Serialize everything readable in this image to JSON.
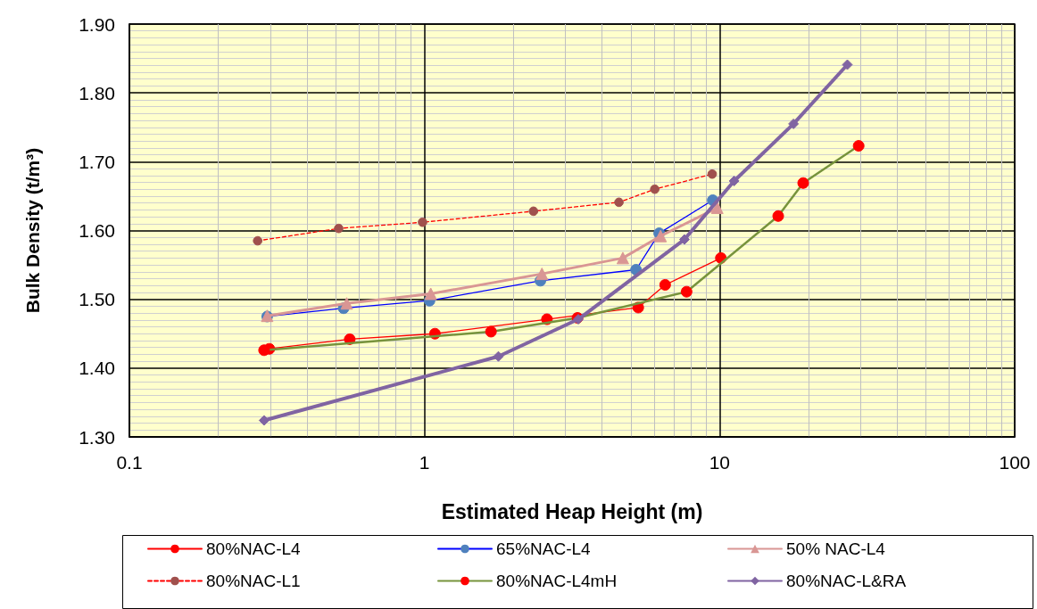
{
  "chart_data": {
    "type": "line",
    "xlabel": "Estimated Heap Height (m)",
    "ylabel": "Bulk Density (t/m³)",
    "log": "x",
    "grid": true,
    "legend": "bottom",
    "xlim": [
      0.1,
      100
    ],
    "xticks": [
      0.1,
      1,
      10,
      100
    ],
    "ylim": [
      1.3,
      1.9
    ],
    "yticks": [
      {
        "value": 1.3,
        "label": "1.30"
      },
      {
        "value": 1.4,
        "label": "1.40"
      },
      {
        "value": 1.5,
        "label": "1.50"
      },
      {
        "value": 1.6,
        "label": "1.60"
      },
      {
        "value": 1.7,
        "label": "1.70"
      },
      {
        "value": 1.8,
        "label": "1.80"
      },
      {
        "value": 1.9,
        "label": "1.90"
      }
    ],
    "series": [
      {
        "name": "80%NAC-L4",
        "color": "#ff0000",
        "marker": "circle",
        "line_style": "solid",
        "x": [
          0.298,
          0.558,
          1.085,
          2.6,
          5.3,
          6.54,
          10.1
        ],
        "values": [
          1.428,
          1.442,
          1.45,
          1.471,
          1.488,
          1.521,
          1.56
        ]
      },
      {
        "name": "65%NAC-L4",
        "color": "#0000ff",
        "colors": [
          "#4f81bd",
          "#4f81bd",
          "#4f81bd",
          "#4f81bd",
          "#4f81bd",
          "#4f81bd",
          "#4f81bd"
        ],
        "marker": "circle",
        "line_style": "solid",
        "x": [
          0.293,
          0.532,
          1.04,
          2.47,
          5.21,
          6.24,
          9.48
        ],
        "values": [
          1.475,
          1.487,
          1.498,
          1.527,
          1.543,
          1.596,
          1.644
        ]
      },
      {
        "name": "50% NAC-L4",
        "color": "#d99694",
        "marker": "triangle",
        "line_style": "solid",
        "x": [
          0.293,
          0.545,
          1.05,
          2.5,
          4.7,
          6.31,
          9.82
        ],
        "values": [
          1.476,
          1.494,
          1.508,
          1.537,
          1.56,
          1.592,
          1.633
        ]
      },
      {
        "name": "80%NAC-L1",
        "color": "#ff0000",
        "colors": [
          "#a0504d",
          "#a0504d",
          "#a0504d",
          "#a0504d",
          "#a0504d",
          "#a0504d",
          "#a0504d"
        ],
        "marker": "circle",
        "line_style": "dashed",
        "x": [
          0.272,
          0.512,
          0.985,
          2.34,
          4.56,
          6.03,
          9.44
        ],
        "values": [
          1.585,
          1.603,
          1.612,
          1.628,
          1.641,
          1.66,
          1.682
        ]
      },
      {
        "name": "80%NAC-L4mH",
        "color": "#77933c",
        "colors": [
          "#ff0000",
          "#ff0000",
          "#ff0000",
          "#ff0000",
          "#ff0000",
          "#ff0000",
          "#ff0000"
        ],
        "marker": "circle",
        "line_style": "solid",
        "x": [
          0.286,
          1.68,
          3.3,
          7.73,
          15.8,
          19.2,
          29.6
        ],
        "values": [
          1.426,
          1.453,
          1.473,
          1.511,
          1.621,
          1.669,
          1.723
        ]
      },
      {
        "name": "80%NAC-L&RA",
        "color": "#8064a2",
        "marker": "diamond",
        "line_style": "solid",
        "x": [
          0.286,
          1.78,
          3.32,
          7.6,
          11.2,
          17.8,
          27.1
        ],
        "values": [
          1.324,
          1.417,
          1.471,
          1.587,
          1.672,
          1.755,
          1.841
        ]
      }
    ]
  }
}
